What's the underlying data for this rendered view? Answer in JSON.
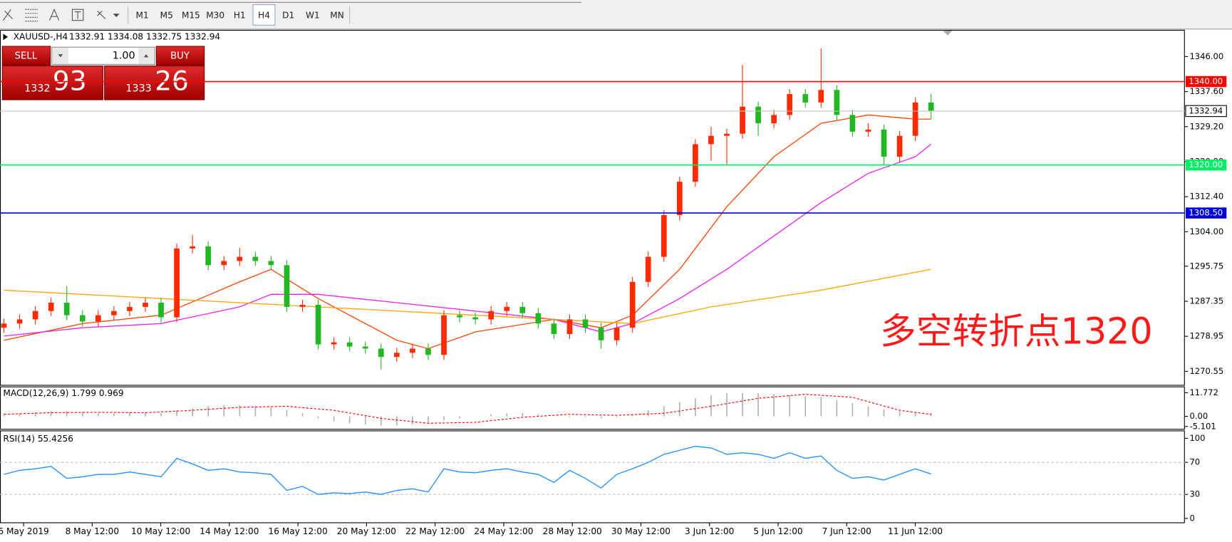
{
  "toolbar": {
    "timeframes": [
      "M1",
      "M5",
      "M15",
      "M30",
      "H1",
      "H4",
      "D1",
      "W1",
      "MN"
    ],
    "active": 5
  },
  "trade_panel": {
    "sell": "SELL",
    "buy": "BUY",
    "lot": "1.00",
    "sell_price_main": "1332",
    "sell_price_big": "93",
    "buy_price_main": "1333",
    "buy_price_big": "26"
  },
  "time_axis": [
    "6 May 2019",
    "8 May 12:00",
    "10 May 12:00",
    "14 May 12:00",
    "16 May 12:00",
    "20 May 12:00",
    "22 May 12:00",
    "24 May 12:00",
    "28 May 12:00",
    "30 May 12:00",
    "3 Jun 12:00",
    "5 Jun 12:00",
    "7 Jun 12:00",
    "11 Jun 12:00"
  ],
  "chart_data": [
    {
      "type": "candlestick",
      "symbol": "XAUUSD-,H4",
      "ohlc_text": "1332.91 1334.08 1332.75 1332.94",
      "up_color": "#ff2a00",
      "down_color": "#22b722",
      "candles": [
        [
          1281,
          1283.2,
          1279.8,
          1282
        ],
        [
          1282,
          1284.2,
          1280.8,
          1283
        ],
        [
          1283,
          1286.2,
          1281.8,
          1285
        ],
        [
          1285,
          1288.2,
          1283.8,
          1287
        ],
        [
          1287,
          1291,
          1282.8,
          1284
        ],
        [
          1284,
          1285.2,
          1281.3,
          1282.5
        ],
        [
          1282.5,
          1285.2,
          1281.3,
          1284
        ],
        [
          1284,
          1286.2,
          1282.8,
          1285
        ],
        [
          1285,
          1287.2,
          1283.8,
          1286
        ],
        [
          1286,
          1288.2,
          1284.8,
          1287
        ],
        [
          1287,
          1288.2,
          1282.3,
          1283.5
        ],
        [
          1283.5,
          1301.2,
          1282.3,
          1300
        ],
        [
          1300,
          1303.2,
          1298.8,
          1300.5
        ],
        [
          1300.5,
          1301.7,
          1294.8,
          1296
        ],
        [
          1296,
          1298.2,
          1294.8,
          1297
        ],
        [
          1297,
          1300.2,
          1295.8,
          1298
        ],
        [
          1298,
          1299.2,
          1295.8,
          1297
        ],
        [
          1297,
          1298.2,
          1294.8,
          1296
        ],
        [
          1296,
          1297.2,
          1284.8,
          1286
        ],
        [
          1286,
          1287.7,
          1284.8,
          1286.5
        ],
        [
          1286.5,
          1287.7,
          1275.8,
          1277
        ],
        [
          1277,
          1278.7,
          1275.8,
          1277.5
        ],
        [
          1277.5,
          1278.7,
          1275.3,
          1276.5
        ],
        [
          1276.5,
          1277.7,
          1274.8,
          1276
        ],
        [
          1276,
          1277.2,
          1271,
          1274
        ],
        [
          1274,
          1276.2,
          1272.8,
          1275
        ],
        [
          1275,
          1277.2,
          1273.8,
          1276
        ],
        [
          1276,
          1277.2,
          1273.3,
          1274.5
        ],
        [
          1274.5,
          1285.2,
          1273.3,
          1284
        ],
        [
          1284,
          1285.2,
          1282.3,
          1283.5
        ],
        [
          1283.5,
          1284.7,
          1281.8,
          1283
        ],
        [
          1283,
          1286.2,
          1281.8,
          1285
        ],
        [
          1285,
          1287.2,
          1283.8,
          1286
        ],
        [
          1286,
          1287.2,
          1283.3,
          1284.5
        ],
        [
          1284.5,
          1285.7,
          1280.8,
          1282
        ],
        [
          1282,
          1283.2,
          1278.3,
          1279.5
        ],
        [
          1279.5,
          1284.2,
          1278.3,
          1283
        ],
        [
          1283,
          1284.2,
          1279.8,
          1281
        ],
        [
          1281,
          1282.2,
          1276,
          1278
        ],
        [
          1278,
          1282.2,
          1276.8,
          1281
        ],
        [
          1281,
          1293.2,
          1279.8,
          1292
        ],
        [
          1292,
          1299.2,
          1290.8,
          1298
        ],
        [
          1298,
          1309.2,
          1296.8,
          1308
        ],
        [
          1308,
          1317.2,
          1306.8,
          1316
        ],
        [
          1316,
          1326.2,
          1314.8,
          1325
        ],
        [
          1325,
          1329.2,
          1321,
          1327
        ],
        [
          1327,
          1328.7,
          1320,
          1327.5
        ],
        [
          1327.5,
          1344,
          1326.3,
          1334
        ],
        [
          1334,
          1335.2,
          1327,
          1330
        ],
        [
          1330,
          1333.2,
          1328.8,
          1332
        ],
        [
          1332,
          1338.2,
          1330.8,
          1337
        ],
        [
          1337,
          1338.2,
          1333.8,
          1335
        ],
        [
          1335,
          1348,
          1333.8,
          1338
        ],
        [
          1338,
          1339.2,
          1330.8,
          1332
        ],
        [
          1332,
          1333.2,
          1326.8,
          1328
        ],
        [
          1328,
          1330,
          1326.8,
          1328.5
        ],
        [
          1328.5,
          1329.7,
          1320,
          1322
        ],
        [
          1322,
          1328.2,
          1320.8,
          1327
        ],
        [
          1327,
          1336.2,
          1325.8,
          1335
        ],
        [
          1335,
          1337,
          1331,
          1332.94
        ]
      ],
      "ma": [
        {
          "color": "#ff4500",
          "x": [
            0,
            5,
            10,
            15,
            17,
            20,
            25,
            27,
            30,
            35,
            38,
            40,
            43,
            46,
            49,
            52,
            55,
            58,
            59
          ],
          "values": [
            1278,
            1282,
            1284,
            1292,
            1295,
            1288,
            1278,
            1276,
            1280,
            1283,
            1281,
            1284,
            1295,
            1310,
            1322,
            1330,
            1332,
            1331,
            1331
          ]
        },
        {
          "color": "#ee22ee",
          "x": [
            0,
            5,
            10,
            15,
            17,
            20,
            25,
            30,
            35,
            38,
            40,
            43,
            46,
            49,
            52,
            55,
            58,
            59
          ],
          "values": [
            1279,
            1281,
            1282,
            1286,
            1289,
            1289,
            1287,
            1285,
            1283,
            1280,
            1282,
            1288,
            1295,
            1303,
            1311,
            1318,
            1322,
            1325
          ]
        },
        {
          "color": "#ffa500",
          "x": [
            0,
            10,
            20,
            30,
            35,
            40,
            45,
            52,
            59
          ],
          "values": [
            1290,
            1288,
            1286,
            1284,
            1283,
            1282,
            1286,
            1290,
            1295
          ]
        }
      ],
      "ylim": [
        1267.3,
        1352.4
      ],
      "yticks": [
        {
          "value": 1346,
          "label": "1346.00"
        },
        {
          "value": 1337.6,
          "label": "1337.60"
        },
        {
          "value": 1329.2,
          "label": "1329.20"
        },
        {
          "value": 1320.8,
          "label": "1320.80"
        },
        {
          "value": 1312.4,
          "label": "1312.40"
        },
        {
          "value": 1304,
          "label": "1304.00"
        },
        {
          "value": 1295.75,
          "label": "1295.75"
        },
        {
          "value": 1287.35,
          "label": "1287.35"
        },
        {
          "value": 1278.95,
          "label": "1278.95"
        },
        {
          "value": 1270.55,
          "label": "1270.55"
        }
      ],
      "hlines": [
        {
          "value": 1340,
          "label": "1340.00",
          "color": "#ff0000"
        },
        {
          "value": 1320,
          "label": "1320.00",
          "color": "#00ee66"
        },
        {
          "value": 1308.5,
          "label": "1308.50",
          "color": "#0000dd"
        }
      ],
      "last_price": {
        "value": 1332.94,
        "label": "1332.94",
        "color": "#c0c0c0"
      },
      "annotation": "多空转折点1320",
      "annotation_color": "#ff1a1a"
    },
    {
      "type": "macd",
      "title": "MACD(12,26,9) 1.799 0.969",
      "color": "#b0b0b0",
      "signal_color": "#ff0000",
      "values": [
        1,
        1.5,
        2,
        2.5,
        2.5,
        2,
        1.5,
        1.5,
        2,
        2,
        1.5,
        3,
        4,
        5,
        5.5,
        5.5,
        5,
        4.5,
        3,
        1.5,
        -1,
        -2.5,
        -3.5,
        -4,
        -4.5,
        -4.5,
        -4,
        -3.5,
        -2,
        -1,
        0,
        1,
        1.5,
        1.5,
        1,
        0,
        -0.5,
        -0.5,
        -1,
        -0.5,
        1,
        3,
        5,
        7,
        9,
        10.5,
        11.5,
        11.7,
        11.5,
        11,
        10.5,
        10,
        9.5,
        8,
        6.5,
        5,
        3.5,
        2.5,
        2,
        1.799
      ],
      "signal_x": [
        0,
        3,
        6,
        9,
        12,
        15,
        18,
        21,
        24,
        27,
        30,
        33,
        36,
        39,
        42,
        45,
        48,
        51,
        54,
        57,
        59
      ],
      "signal": [
        1,
        1.8,
        2,
        1.8,
        3,
        4.5,
        5,
        3,
        -1,
        -3.5,
        -3,
        -0.5,
        1,
        0.5,
        1.5,
        5,
        9,
        11,
        9.5,
        3,
        0.969
      ],
      "ylim": [
        -6.28,
        14.91
      ],
      "yticks": [
        {
          "value": 11.772,
          "label": "11.772"
        },
        {
          "value": 0,
          "label": "0.00"
        },
        {
          "value": -5.101,
          "label": "-5.101"
        }
      ]
    },
    {
      "type": "rsi",
      "title": "RSI(14) 55.4256",
      "color": "#1e90ff",
      "values": [
        55,
        60,
        62,
        65,
        50,
        52,
        55,
        55,
        58,
        55,
        52,
        75,
        68,
        60,
        62,
        58,
        57,
        55,
        35,
        40,
        30,
        32,
        31,
        33,
        30,
        35,
        37,
        33,
        62,
        58,
        57,
        60,
        62,
        58,
        55,
        45,
        60,
        50,
        38,
        55,
        62,
        70,
        80,
        85,
        90,
        88,
        80,
        82,
        80,
        75,
        82,
        75,
        78,
        60,
        50,
        52,
        48,
        55,
        62,
        55.4256
      ],
      "ylim": [
        0,
        100
      ],
      "yticks": [
        100,
        70,
        30,
        0
      ],
      "levels": [
        70,
        30
      ]
    }
  ]
}
